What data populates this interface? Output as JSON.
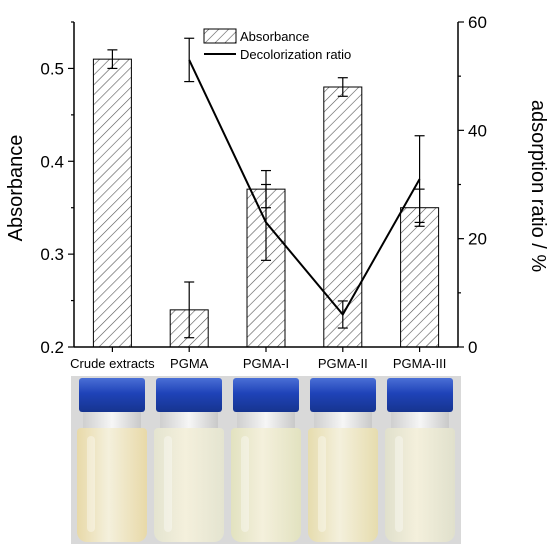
{
  "chart_data": {
    "type": "bar",
    "categories": [
      "Crude extracts",
      "PGMA",
      "PGMA-I",
      "PGMA-II",
      "PGMA-III"
    ],
    "series": [
      {
        "name": "Absorbance",
        "type": "bar",
        "axis": "left",
        "values": [
          0.51,
          0.24,
          0.37,
          0.48,
          0.35
        ],
        "errors": [
          0.01,
          0.03,
          0.02,
          0.01,
          0.02
        ]
      },
      {
        "name": "Decolorization ratio",
        "type": "line",
        "axis": "right",
        "values": [
          null,
          53,
          23,
          6,
          31
        ],
        "errors": [
          null,
          4,
          7,
          2.5,
          8
        ]
      }
    ],
    "ylabel": "Absorbance",
    "y2label": "adsorption ratio / %",
    "ylim": [
      0.2,
      0.55
    ],
    "y2lim": [
      0,
      60
    ],
    "yticks": [
      "0.2",
      "0.3",
      "0.4",
      "0.5"
    ],
    "y2ticks": [
      "0",
      "20",
      "40",
      "60"
    ],
    "legend_position": "top-center",
    "grid": false,
    "bar_pattern": "hatched",
    "colors": {
      "bar_fill": "#ffffff",
      "hatch": "#555555",
      "line": "#000000",
      "axis": "#000000"
    }
  },
  "photos": {
    "vials": [
      {
        "name": "Crude extracts",
        "liquid": "#e8d9a8"
      },
      {
        "name": "PGMA",
        "liquid": "#e4e4d0"
      },
      {
        "name": "PGMA-I",
        "liquid": "#e2e2c0"
      },
      {
        "name": "PGMA-II",
        "liquid": "#e6dcae"
      },
      {
        "name": "PGMA-III",
        "liquid": "#e0e0cc"
      }
    ]
  }
}
